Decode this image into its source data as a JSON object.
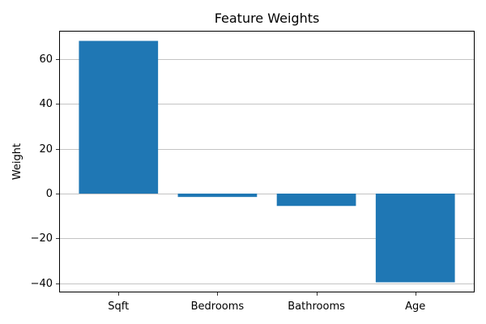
{
  "chart_data": {
    "type": "bar",
    "title": "Feature Weights",
    "xlabel": "",
    "ylabel": "Weight",
    "categories": [
      "Sqft",
      "Bedrooms",
      "Bathrooms",
      "Age"
    ],
    "values": [
      68,
      -1.5,
      -5.5,
      -39.5
    ],
    "ylim": [
      -44,
      72.5
    ],
    "yticks": [
      -40,
      -20,
      0,
      20,
      40,
      60
    ],
    "ytick_labels": [
      "−40",
      "−20",
      "0",
      "20",
      "40",
      "60"
    ],
    "grid": "y-axis",
    "bar_color": "#1f77b4"
  }
}
